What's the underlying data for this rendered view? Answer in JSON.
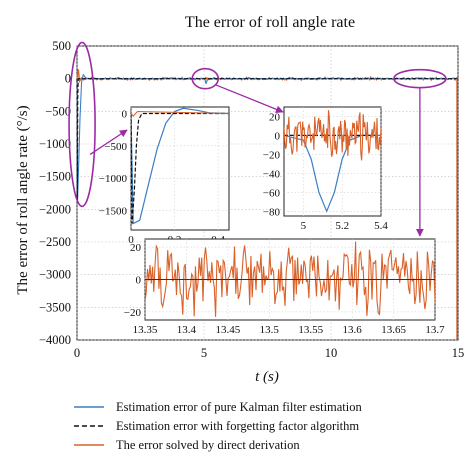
{
  "chart_data": [
    {
      "panel": "main",
      "type": "line",
      "title": "The error of roll angle rate",
      "xlabel": "t (s)",
      "ylabel": "The error of roll angle rate (°/s)",
      "xlim": [
        0,
        15
      ],
      "ylim": [
        -4000,
        500
      ],
      "x_ticks": [
        0,
        5,
        10,
        15
      ],
      "y_ticks": [
        500,
        0,
        -500,
        -1000,
        -1500,
        -2000,
        -2500,
        -3000,
        -3500,
        -4000
      ],
      "grid": true,
      "legend": "below",
      "series": [
        {
          "name": "Estimation error of pure Kalman filter estimation",
          "color": "#3a7fc4",
          "points": [
            [
              0,
              0
            ],
            [
              0.02,
              -1900
            ],
            [
              0.06,
              -1400
            ],
            [
              0.12,
              -600
            ],
            [
              0.18,
              -50
            ],
            [
              0.25,
              60
            ],
            [
              0.35,
              10
            ],
            [
              0.5,
              0
            ],
            [
              5,
              0
            ],
            [
              5.05,
              -30
            ],
            [
              5.08,
              -80
            ],
            [
              5.12,
              -30
            ],
            [
              5.2,
              0
            ],
            [
              15,
              0
            ]
          ]
        },
        {
          "name": "Estimation error with forgetting factor algorithm",
          "color": "#111111",
          "points": [
            [
              0,
              0
            ],
            [
              0.01,
              -1900
            ],
            [
              0.03,
              -300
            ],
            [
              0.05,
              0
            ],
            [
              15,
              0
            ]
          ]
        },
        {
          "name": "The error solved by direct derivation",
          "color": "#d9622b",
          "points": [
            [
              0,
              0
            ],
            [
              0.05,
              140
            ],
            [
              0.1,
              -40
            ],
            [
              0.2,
              20
            ],
            [
              15,
              0
            ]
          ]
        }
      ]
    },
    {
      "panel": "inset-1",
      "type": "line",
      "xlim": [
        0,
        0.45
      ],
      "ylim": [
        -1800,
        100
      ],
      "x_ticks": [
        0,
        0.2,
        0.4
      ],
      "y_ticks": [
        0,
        -500,
        -1000,
        -1500
      ],
      "series": [
        {
          "name": "Estimation error of pure Kalman filter estimation",
          "points": [
            [
              0,
              0
            ],
            [
              0.01,
              -1700
            ],
            [
              0.04,
              -1650
            ],
            [
              0.08,
              -1100
            ],
            [
              0.12,
              -550
            ],
            [
              0.16,
              -150
            ],
            [
              0.2,
              30
            ],
            [
              0.24,
              80
            ],
            [
              0.3,
              50
            ],
            [
              0.36,
              10
            ],
            [
              0.45,
              0
            ]
          ]
        },
        {
          "name": "Estimation error with forgetting factor algorithm",
          "points": [
            [
              0,
              0
            ],
            [
              0.005,
              -1700
            ],
            [
              0.015,
              -1200
            ],
            [
              0.025,
              -500
            ],
            [
              0.035,
              -100
            ],
            [
              0.05,
              0
            ],
            [
              0.45,
              0
            ]
          ]
        },
        {
          "name": "The error solved by direct derivation",
          "points": [
            [
              0,
              0
            ],
            [
              0.01,
              -40
            ],
            [
              0.03,
              30
            ],
            [
              0.45,
              0
            ]
          ]
        }
      ]
    },
    {
      "panel": "inset-2",
      "type": "line",
      "xlim": [
        4.9,
        5.4
      ],
      "ylim": [
        -85,
        30
      ],
      "x_ticks": [
        5,
        5.2,
        5.4
      ],
      "y_ticks": [
        20,
        0,
        -20,
        -40,
        -60,
        -80
      ],
      "series": [
        {
          "name": "Estimation error of pure Kalman filter estimation",
          "points": [
            [
              4.9,
              0
            ],
            [
              5.0,
              -5
            ],
            [
              5.04,
              -25
            ],
            [
              5.08,
              -60
            ],
            [
              5.12,
              -80
            ],
            [
              5.16,
              -60
            ],
            [
              5.2,
              -25
            ],
            [
              5.24,
              -5
            ],
            [
              5.3,
              0
            ],
            [
              5.4,
              0
            ]
          ]
        },
        {
          "name": "Estimation error with forgetting factor algorithm",
          "points": [
            [
              4.9,
              0
            ],
            [
              5.4,
              0
            ]
          ]
        },
        {
          "name": "The error solved by direct derivation",
          "amplitude": 25
        }
      ]
    },
    {
      "panel": "inset-3",
      "type": "line",
      "xlim": [
        13.35,
        13.7
      ],
      "ylim": [
        -25,
        25
      ],
      "x_ticks": [
        13.35,
        13.4,
        13.45,
        13.5,
        13.55,
        13.6,
        13.65,
        13.7
      ],
      "x_tick_labels": [
        "13.35",
        "13.4",
        "13.45",
        "13.5",
        "13.55",
        "13.6",
        "13.65",
        "13.7"
      ],
      "y_ticks": [
        20,
        0,
        -20
      ],
      "series": [
        {
          "name": "The error solved by direct derivation",
          "amplitude": 22
        }
      ]
    }
  ],
  "legend": [
    {
      "label": "Estimation error of pure Kalman filter estimation",
      "color": "#3a7fc4",
      "dash": "solid"
    },
    {
      "label": "Estimation error with forgetting factor algorithm",
      "color": "#111111",
      "dash": "dashed"
    },
    {
      "label": "The error solved by direct derivation",
      "color": "#d9622b",
      "dash": "solid"
    }
  ],
  "colors": {
    "highlight": "#9c2aa5",
    "kalman": "#3a7fc4",
    "forgetting": "#111111",
    "derivation": "#d9622b"
  }
}
